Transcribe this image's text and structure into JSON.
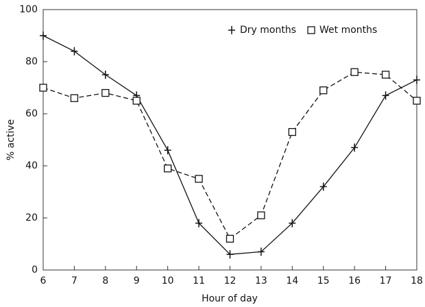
{
  "chart_data": {
    "type": "line",
    "x_label": "Hour of day",
    "y_label": "% active",
    "x": [
      6,
      7,
      8,
      9,
      10,
      11,
      12,
      13,
      14,
      15,
      16,
      17,
      18
    ],
    "series": [
      {
        "name": "Dry months",
        "color": "#111111",
        "linestyle": "solid",
        "marker": "plus",
        "values": [
          90,
          84,
          75,
          67,
          46,
          18,
          6,
          7,
          18,
          32,
          47,
          67,
          73
        ]
      },
      {
        "name": "Wet months",
        "color": "#111111",
        "linestyle": "dashed",
        "marker": "square",
        "values": [
          70,
          66,
          68,
          65,
          39,
          35,
          12,
          21,
          53,
          69,
          76,
          75,
          65
        ]
      }
    ],
    "xlim": [
      6,
      18
    ],
    "xticks": [
      6,
      7,
      8,
      9,
      10,
      11,
      12,
      13,
      14,
      15,
      16,
      17,
      18
    ],
    "ylim": [
      0,
      100
    ],
    "yticks": [
      0,
      20,
      40,
      60,
      80,
      100
    ],
    "grid": false,
    "legend": "upper right"
  }
}
